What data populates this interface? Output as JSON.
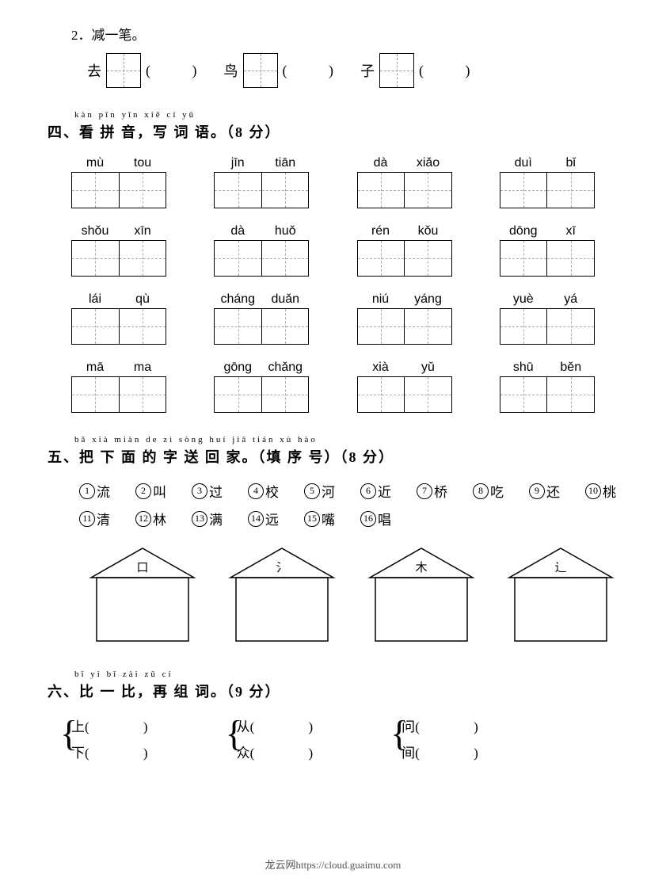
{
  "q2": {
    "prompt": "2．减一笔。",
    "items": [
      {
        "char": "去"
      },
      {
        "char": "鸟"
      },
      {
        "char": "子"
      }
    ]
  },
  "q4": {
    "ruby": "kàn pīn yīn    xiě cí yǔ",
    "heading": "四、看 拼 音，写 词 语。（8 分）",
    "cells": [
      {
        "p1": "mù",
        "p2": "tou"
      },
      {
        "p1": "jīn",
        "p2": "tiān"
      },
      {
        "p1": "dà",
        "p2": "xiǎo"
      },
      {
        "p1": "duì",
        "p2": "bǐ"
      },
      {
        "p1": "shǒu",
        "p2": "xīn"
      },
      {
        "p1": "dà",
        "p2": "huǒ"
      },
      {
        "p1": "rén",
        "p2": "kǒu"
      },
      {
        "p1": "dōng",
        "p2": "xī"
      },
      {
        "p1": "lái",
        "p2": "qù"
      },
      {
        "p1": "cháng",
        "p2": "duǎn"
      },
      {
        "p1": "niú",
        "p2": "yáng"
      },
      {
        "p1": "yuè",
        "p2": "yá"
      },
      {
        "p1": "mā",
        "p2": "ma"
      },
      {
        "p1": "gōng",
        "p2": "chǎng"
      },
      {
        "p1": "xià",
        "p2": "yǔ"
      },
      {
        "p1": "shū",
        "p2": "běn"
      }
    ]
  },
  "q5": {
    "ruby": "bǎ xià miàn de  zì sòng huí  jiā          tián xù hào",
    "heading": "五、把 下 面 的 字 送 回 家。（填 序 号）（8 分）",
    "chars": [
      {
        "n": "1",
        "c": "流"
      },
      {
        "n": "2",
        "c": "叫"
      },
      {
        "n": "3",
        "c": "过"
      },
      {
        "n": "4",
        "c": "校"
      },
      {
        "n": "5",
        "c": "河"
      },
      {
        "n": "6",
        "c": "近"
      },
      {
        "n": "7",
        "c": "桥"
      },
      {
        "n": "8",
        "c": "吃"
      },
      {
        "n": "9",
        "c": "还"
      },
      {
        "n": "10",
        "c": "桃"
      },
      {
        "n": "11",
        "c": "清"
      },
      {
        "n": "12",
        "c": "林"
      },
      {
        "n": "13",
        "c": "满"
      },
      {
        "n": "14",
        "c": "远"
      },
      {
        "n": "15",
        "c": "嘴"
      },
      {
        "n": "16",
        "c": "唱"
      }
    ],
    "radicals": [
      "口",
      "氵",
      "木",
      "辶"
    ]
  },
  "q6": {
    "ruby": "bǐ  yi  bǐ     zài zǔ cí",
    "heading": "六、比 一 比，再 组 词。（9 分）",
    "groups": [
      {
        "a": "上",
        "b": "下"
      },
      {
        "a": "从",
        "b": "众"
      },
      {
        "a": "问",
        "b": "间"
      }
    ]
  },
  "footer": "龙云网https://cloud.guaimu.com"
}
